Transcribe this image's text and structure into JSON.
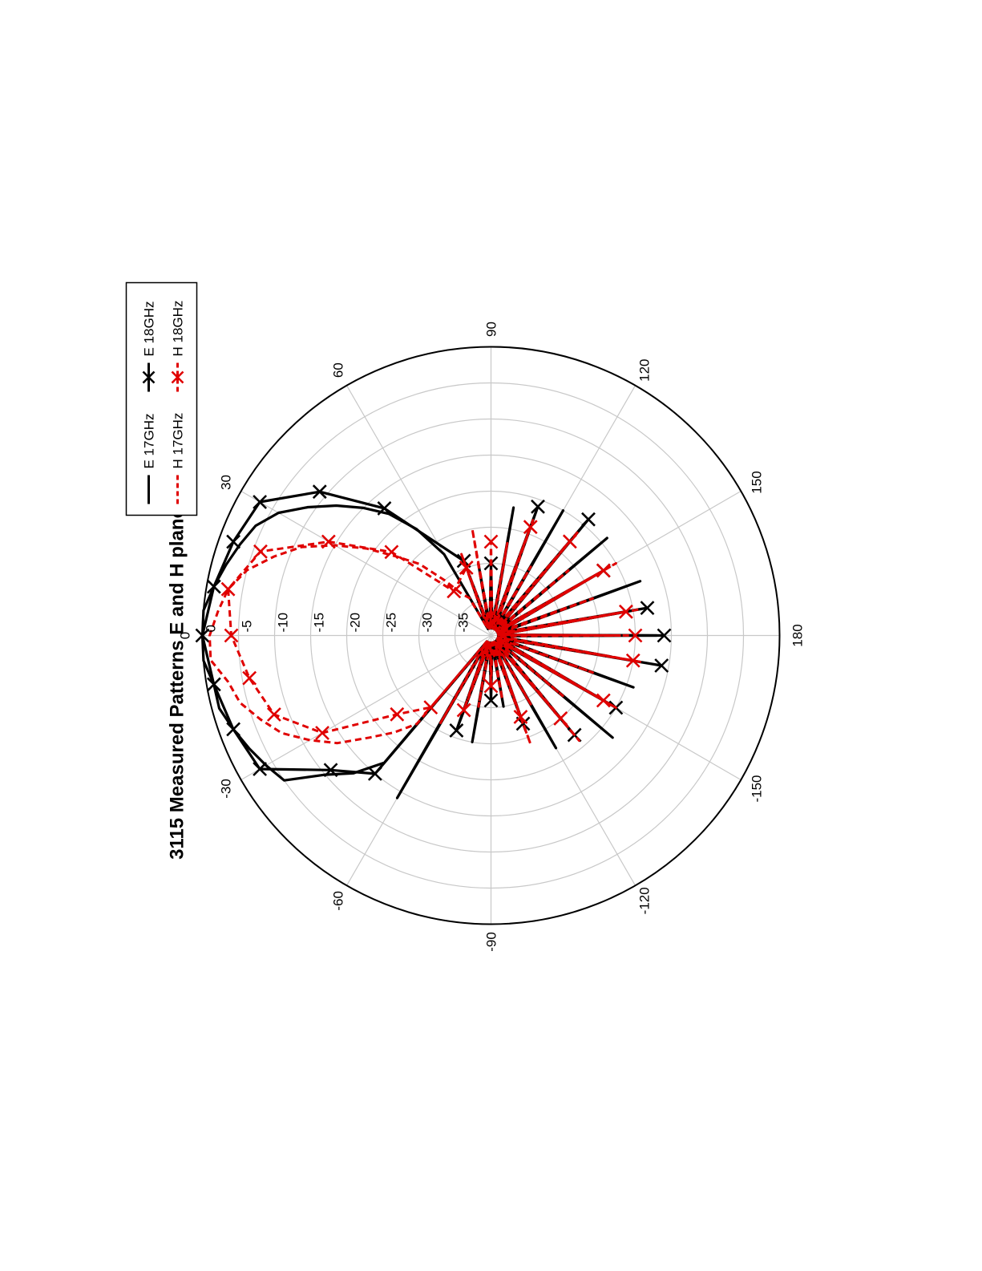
{
  "chart_data": {
    "type": "polar",
    "title": "3115 Measured Patterns E and H plane",
    "angle_unit": "degrees",
    "angle_ticks": [
      "0",
      "30",
      "60",
      "90",
      "120",
      "150",
      "180",
      "-150",
      "-120",
      "-90",
      "-60",
      "-30"
    ],
    "radial_ticks": [
      "0",
      "-5",
      "-10",
      "-15",
      "-20",
      "-25",
      "-30",
      "-35"
    ],
    "rlim": [
      -40,
      0
    ],
    "grid": true,
    "orientation_note": "page rotated 90 degrees counter-clockwise",
    "legend": {
      "placement": "top-right",
      "entries": [
        "E 17GHz",
        "E 18GHz",
        "H 17GHz",
        "H 18GHz"
      ]
    },
    "series": [
      {
        "name": "E 17GHz",
        "color": "#000000",
        "line": "solid",
        "marker": "none",
        "angles": [
          -180,
          -170,
          -160,
          -150,
          -140,
          -130,
          -120,
          -110,
          -100,
          -90,
          -80,
          -70,
          -60,
          -50,
          -45,
          -40,
          -35,
          -30,
          -25,
          -20,
          -15,
          -10,
          -5,
          0,
          5,
          10,
          15,
          20,
          25,
          30,
          35,
          40,
          45,
          50,
          55,
          60,
          70,
          80,
          90,
          100,
          110,
          120,
          130,
          140,
          150,
          160,
          170,
          180
        ],
        "values": [
          -17,
          -23,
          -19,
          -25,
          -18,
          -29,
          -22,
          -26,
          -30,
          -32,
          -25,
          -28,
          -14,
          -17,
          -13,
          -10,
          -5,
          -4,
          -3,
          -2,
          -1,
          -1,
          0,
          0,
          0,
          -1,
          -2,
          -3,
          -4,
          -6,
          -9,
          -12,
          -15,
          -18,
          -22,
          -27,
          -31,
          -30,
          -36,
          -22,
          -26,
          -20,
          -28,
          -19,
          -24,
          -18,
          -22,
          -17
        ]
      },
      {
        "name": "E 18GHz",
        "color": "#000000",
        "line": "solid",
        "marker": "x",
        "angles": [
          -170,
          -150,
          -130,
          -110,
          -90,
          -70,
          -50,
          -40,
          -30,
          -20,
          -10,
          0,
          10,
          20,
          30,
          40,
          50,
          70,
          90,
          110,
          130,
          150,
          170,
          180
        ],
        "values": [
          -16,
          -20,
          -22,
          -27,
          -31,
          -26,
          -15,
          -11,
          -3,
          -2,
          -1,
          0,
          -1,
          -2,
          -3,
          -9,
          -17,
          -29,
          -30,
          -21,
          -19,
          -22,
          -18,
          -16
        ]
      },
      {
        "name": "H 17GHz",
        "color": "#e00000",
        "line": "dashed",
        "marker": "none",
        "angles": [
          -180,
          -170,
          -160,
          -150,
          -140,
          -130,
          -120,
          -110,
          -100,
          -90,
          -80,
          -70,
          -60,
          -50,
          -45,
          -40,
          -35,
          -30,
          -25,
          -20,
          -15,
          -10,
          -5,
          0,
          5,
          10,
          15,
          20,
          25,
          30,
          35,
          40,
          45,
          50,
          55,
          60,
          70,
          80,
          90,
          100,
          110,
          120,
          130,
          140,
          150,
          160,
          170,
          180
        ],
        "values": [
          -22,
          -19,
          -25,
          -20,
          -27,
          -21,
          -29,
          -24,
          -31,
          -35,
          -30,
          -32,
          -26,
          -24,
          -21,
          -18,
          -14,
          -11,
          -8,
          -6,
          -4,
          -3,
          -1,
          -1,
          -2,
          -3,
          -5,
          -8,
          -11,
          -15,
          -19,
          -23,
          -26,
          -30,
          -33,
          -34,
          -28,
          -25,
          -36,
          -27,
          -23,
          -29,
          -21,
          -26,
          -20,
          -25,
          -19,
          -22
        ]
      },
      {
        "name": "H 18GHz",
        "color": "#e00000",
        "line": "dashed",
        "marker": "x",
        "angles": [
          -170,
          -150,
          -130,
          -110,
          -90,
          -70,
          -50,
          -40,
          -30,
          -20,
          -10,
          0,
          10,
          20,
          30,
          40,
          50,
          70,
          90,
          110,
          130,
          150,
          170,
          180
        ],
        "values": [
          -20,
          -22,
          -25,
          -28,
          -33,
          -29,
          -27,
          -23,
          -13,
          -8,
          -6,
          -4,
          -3,
          -6,
          -14,
          -22,
          -32,
          -30,
          -27,
          -24,
          -23,
          -22,
          -21,
          -20
        ]
      }
    ]
  }
}
